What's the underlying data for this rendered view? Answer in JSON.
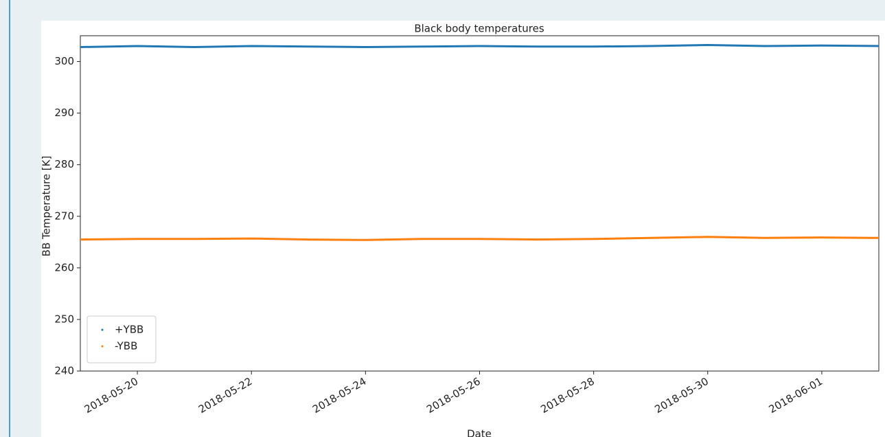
{
  "chart_data": {
    "type": "line",
    "title": "Black body temperatures",
    "x_label": "Date",
    "y_label": "BB Temperature [K]",
    "x": [
      "2018-05-19",
      "2018-05-20",
      "2018-05-21",
      "2018-05-22",
      "2018-05-23",
      "2018-05-24",
      "2018-05-25",
      "2018-05-26",
      "2018-05-27",
      "2018-05-28",
      "2018-05-29",
      "2018-05-30",
      "2018-05-31",
      "2018-06-01",
      "2018-06-02"
    ],
    "series": [
      {
        "name": "+YBB",
        "color": "#1f77b4",
        "values": [
          302.8,
          303.0,
          302.8,
          303.0,
          302.9,
          302.8,
          302.9,
          303.0,
          302.9,
          302.9,
          303.0,
          303.2,
          303.0,
          303.1,
          303.0
        ]
      },
      {
        "name": "-YBB",
        "color": "#ff7f0e",
        "values": [
          265.5,
          265.6,
          265.6,
          265.7,
          265.5,
          265.4,
          265.6,
          265.6,
          265.5,
          265.6,
          265.8,
          266.0,
          265.8,
          265.9,
          265.8
        ]
      }
    ],
    "xlim": [
      "2018-05-19",
      "2018-06-02"
    ],
    "xticks": [
      "2018-05-20",
      "2018-05-22",
      "2018-05-24",
      "2018-05-26",
      "2018-05-28",
      "2018-05-30",
      "2018-06-01"
    ],
    "ylim": [
      240,
      305
    ],
    "yticks": [
      240,
      250,
      260,
      270,
      280,
      290,
      300
    ],
    "legend": "lower left",
    "grid": false
  }
}
